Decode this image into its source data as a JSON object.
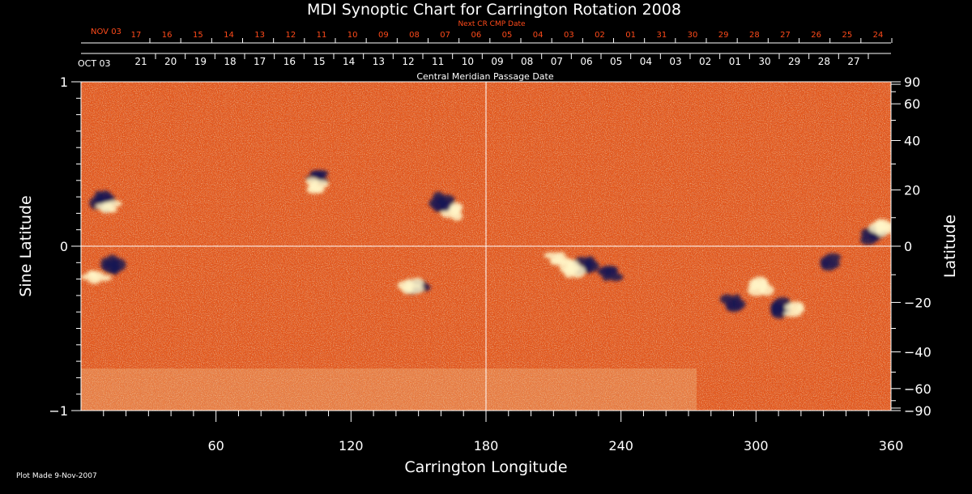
{
  "chart_data": {
    "type": "heatmap",
    "title": "MDI Synoptic Chart for Carrington Rotation 2008",
    "xlabel": "Carrington Longitude",
    "ylabel_left": "Sine Latitude",
    "ylabel_right": "Latitude",
    "xlim": [
      0,
      360
    ],
    "ylim": [
      -1,
      1
    ],
    "x_ticks": [
      60,
      120,
      180,
      240,
      300,
      360
    ],
    "y_left_ticks": [
      {
        "value": 1,
        "label": "1"
      },
      {
        "value": 0,
        "label": "0"
      },
      {
        "value": -1,
        "label": "−1"
      }
    ],
    "y_right_ticks": [
      90,
      60,
      40,
      20,
      0,
      -20,
      -40,
      -60,
      -90
    ],
    "top_axis_title": "Next CR CMP Date",
    "top_axis_start_label": "NOV 03",
    "top_axis_dates": [
      "17",
      "16",
      "15",
      "14",
      "13",
      "12",
      "11",
      "10",
      "09",
      "08",
      "07",
      "06",
      "05",
      "04",
      "03",
      "02",
      "01",
      "31",
      "30",
      "29",
      "28",
      "27",
      "26",
      "25",
      "24"
    ],
    "mid_axis_start_label": "OCT 03",
    "mid_axis_dates": [
      "21",
      "20",
      "19",
      "18",
      "17",
      "16",
      "15",
      "14",
      "13",
      "12",
      "11",
      "10",
      "09",
      "08",
      "07",
      "06",
      "05",
      "04",
      "03",
      "02",
      "01",
      "30",
      "29",
      "28",
      "27"
    ],
    "mid_axis_title": "Central Meridian Passage Date",
    "crosshair": {
      "longitude": 180,
      "sine_latitude": 0
    },
    "footnote": "Plot Made  9-Nov-2007",
    "colors": {
      "background": "#e8601c",
      "positive": "#fff6c8",
      "negative": "#1a1452",
      "accent_red": "#ff4a1a"
    },
    "active_regions": [
      {
        "lon": 106,
        "slat": 0.43,
        "polarity": "negative"
      },
      {
        "lon": 104,
        "slat": 0.36,
        "polarity": "positive"
      },
      {
        "lon": 166,
        "slat": 0.22,
        "polarity": "positive"
      },
      {
        "lon": 160,
        "slat": 0.26,
        "polarity": "negative"
      },
      {
        "lon": 10,
        "slat": 0.28,
        "polarity": "negative"
      },
      {
        "lon": 12,
        "slat": 0.24,
        "polarity": "positive"
      },
      {
        "lon": 150,
        "slat": -0.25,
        "polarity": "negative"
      },
      {
        "lon": 146,
        "slat": -0.24,
        "polarity": "positive"
      },
      {
        "lon": 225,
        "slat": -0.12,
        "polarity": "negative"
      },
      {
        "lon": 218,
        "slat": -0.13,
        "polarity": "positive"
      },
      {
        "lon": 212,
        "slat": -0.08,
        "polarity": "positive"
      },
      {
        "lon": 235,
        "slat": -0.16,
        "polarity": "negative"
      },
      {
        "lon": 290,
        "slat": -0.35,
        "polarity": "negative"
      },
      {
        "lon": 302,
        "slat": -0.24,
        "polarity": "positive"
      },
      {
        "lon": 310,
        "slat": -0.38,
        "polarity": "negative"
      },
      {
        "lon": 318,
        "slat": -0.38,
        "polarity": "positive"
      },
      {
        "lon": 332,
        "slat": -0.1,
        "polarity": "negative"
      },
      {
        "lon": 352,
        "slat": 0.07,
        "polarity": "negative"
      },
      {
        "lon": 356,
        "slat": 0.12,
        "polarity": "positive"
      },
      {
        "lon": 14,
        "slat": -0.12,
        "polarity": "negative"
      },
      {
        "lon": 6,
        "slat": -0.18,
        "polarity": "positive"
      }
    ]
  }
}
